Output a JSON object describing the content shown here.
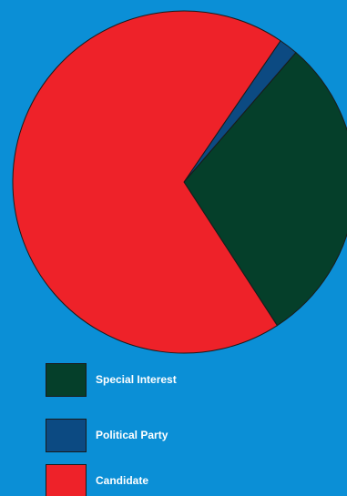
{
  "chart_data": {
    "type": "pie",
    "title": "",
    "slices": [
      {
        "label": "Special Interest",
        "value": 29.5,
        "color": "#053f2a"
      },
      {
        "label": "Political Party",
        "value": 1.8,
        "color": "#0c4a82"
      },
      {
        "label": "Candidate",
        "value": 68.7,
        "color": "#ee2229"
      }
    ],
    "legend": {
      "placement": "bottom-left",
      "items": [
        "Special Interest",
        "Political Party",
        "Candidate"
      ]
    }
  },
  "colors": {
    "background": "#0b8fd6",
    "outline": "#1a1a1a"
  }
}
